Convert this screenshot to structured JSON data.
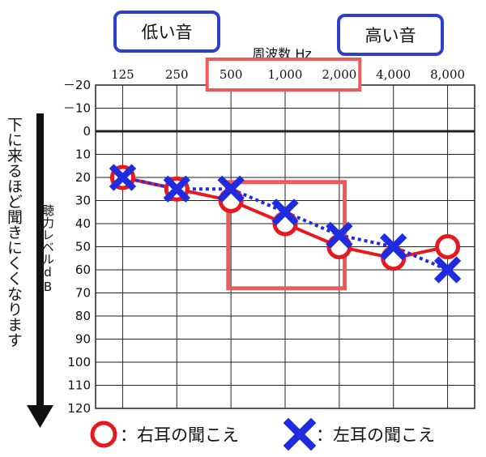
{
  "labels": {
    "low": "低い音",
    "high": "高い音",
    "freq_title": "周波数 Hz",
    "ylabel": "聴力レベルdB",
    "arrow_text": "下に来るほど聞きにくくなります"
  },
  "legend": {
    "right_label": "：右耳の聞こえ",
    "left_label": "：左耳の聞こえ"
  },
  "colors": {
    "right": "#e8191e",
    "left": "#1f2be0",
    "highlight": "#ec5a5c",
    "label_border": "#2d3fd0"
  },
  "chart_data": {
    "type": "line",
    "title": "",
    "xlabel": "周波数 Hz",
    "ylabel": "聴力レベル dB",
    "categories": [
      "125",
      "250",
      "500",
      "1,000",
      "2,000",
      "4,000",
      "8,000"
    ],
    "y_ticks": [
      "－20",
      "－10",
      "0",
      "10",
      "20",
      "30",
      "40",
      "50",
      "60",
      "70",
      "80",
      "90",
      "100",
      "110",
      "120"
    ],
    "ylim": [
      -20,
      120
    ],
    "y_inverted": true,
    "grid": true,
    "highlight_categories": [
      "500",
      "1,000",
      "2,000"
    ],
    "series": [
      {
        "name": "右耳の聞こえ",
        "marker": "circle",
        "line": "solid",
        "values": [
          20,
          25,
          30,
          40,
          50,
          55,
          50
        ]
      },
      {
        "name": "左耳の聞こえ",
        "marker": "x",
        "line": "dotted",
        "values": [
          20,
          25,
          25,
          35,
          45,
          50,
          60
        ]
      }
    ]
  }
}
